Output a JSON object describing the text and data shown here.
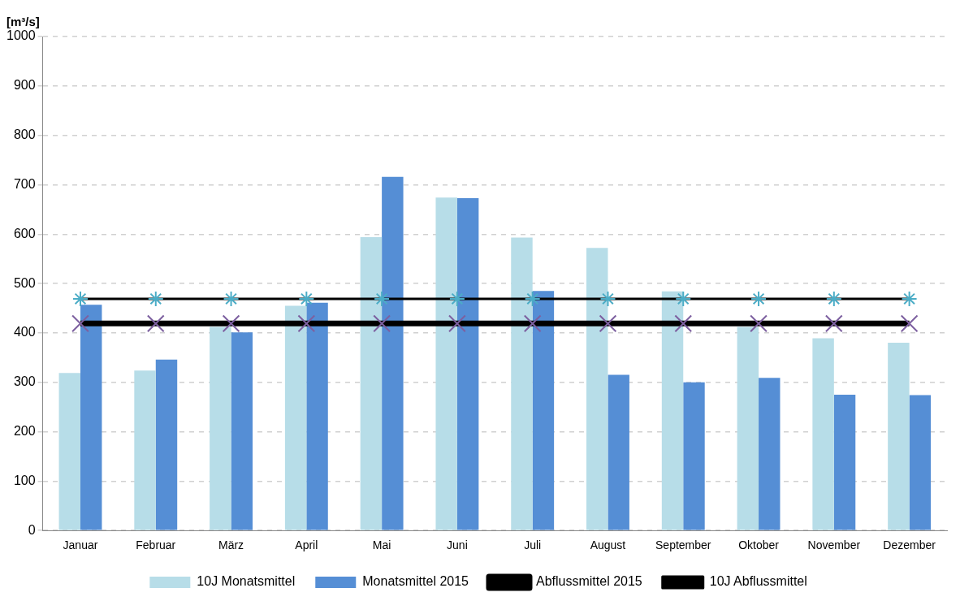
{
  "chart_data": {
    "type": "bar",
    "ylabel": "[m³/s]",
    "categories": [
      "Januar",
      "Februar",
      "März",
      "April",
      "Mai",
      "Juni",
      "Juli",
      "August",
      "September",
      "Oktober",
      "November",
      "Dezember"
    ],
    "series": [
      {
        "name": "10J Monatsmittel",
        "color": "#b7dde8",
        "values": [
          319,
          324,
          412,
          455,
          594,
          674,
          593,
          572,
          484,
          412,
          389,
          380
        ]
      },
      {
        "name": "Monatsmittel 2015",
        "color": "#558ed5",
        "values": [
          457,
          346,
          401,
          461,
          716,
          673,
          485,
          315,
          300,
          309,
          275,
          274
        ]
      },
      {
        "name": "Abflussmittel 2015",
        "type": "line",
        "color": "#000000",
        "marker": "cross",
        "values": [
          419,
          419,
          419,
          419,
          419,
          419,
          419,
          419,
          419,
          419,
          419,
          419
        ]
      },
      {
        "name": "10J Abflussmittel",
        "type": "line",
        "color": "#000000",
        "marker": "cross",
        "values": [
          469,
          469,
          469,
          469,
          469,
          469,
          469,
          469,
          469,
          469,
          469,
          469
        ]
      }
    ],
    "ylim": [
      0,
      1000
    ],
    "yticks": [
      0,
      100,
      200,
      300,
      400,
      500,
      600,
      700,
      800,
      900,
      1000
    ],
    "grid": "y",
    "legend": "bottom"
  }
}
